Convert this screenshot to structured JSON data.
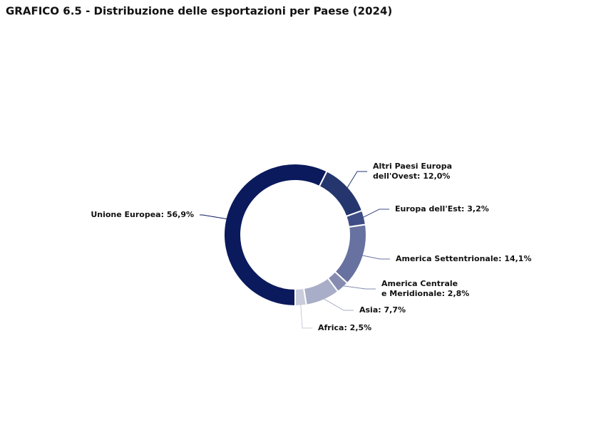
{
  "chart_data": {
    "type": "donut",
    "title": "GRAFICO 6.5 - Distribuzione delle esportazioni per Paese (2024)",
    "values": [
      56.9,
      12.0,
      3.2,
      14.1,
      2.8,
      7.7,
      2.5
    ],
    "value_labels": [
      [
        "Unione Europea: 56,9%"
      ],
      [
        "Altri Paesi Europa",
        "dell'Ovest: 12,0%"
      ],
      [
        "Europa dell'Est: 3,2%"
      ],
      [
        "America Settentrionale: 14,1%"
      ],
      [
        "America Centrale",
        "e Meridionale: 2,8%"
      ],
      [
        "Asia: 7,7%"
      ],
      [
        "Africa: 2,5%"
      ]
    ],
    "colors": [
      "#0b1a5c",
      "#25366f",
      "#3e4d86",
      "#6872a0",
      "#858cb0",
      "#a9aec8",
      "#c9ccdb"
    ]
  }
}
